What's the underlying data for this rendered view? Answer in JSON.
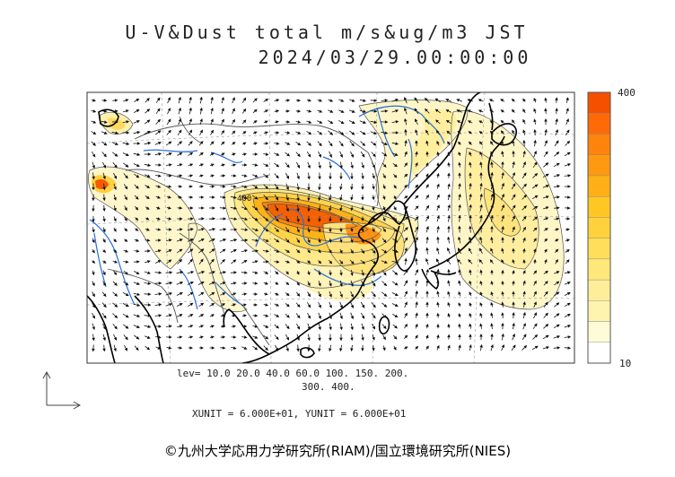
{
  "title": {
    "line1": "U-V&Dust total m/s&ug/m3 JST",
    "line2": "2024/03/29.00:00:00"
  },
  "colorbar": {
    "max_label": "400",
    "min_label": "10",
    "colors": [
      "#ffffff",
      "#fffbd8",
      "#fff3b0",
      "#ffee99",
      "#ffe87a",
      "#ffde5c",
      "#ffd23c",
      "#ffc624",
      "#ffb016",
      "#ff9a10",
      "#ff840c",
      "#ff6a08",
      "#f55000"
    ]
  },
  "levels": {
    "line1": "lev= 10.0 20.0 40.0 60.0 100. 150. 200.",
    "line2": "300. 400."
  },
  "units": "XUNIT = 6.000E+01, YUNIT = 6.000E+01",
  "map_labels": {
    "contour_label": "400"
  },
  "copyright": "©九州大学応用力学研究所(RIAM)/国立環境研究所(NIES)",
  "colors": {
    "coast": "#000000",
    "border": "#666666",
    "river": "#2a6fdc",
    "dust_low": "#fff3b0",
    "dust_high": "#f55000"
  }
}
